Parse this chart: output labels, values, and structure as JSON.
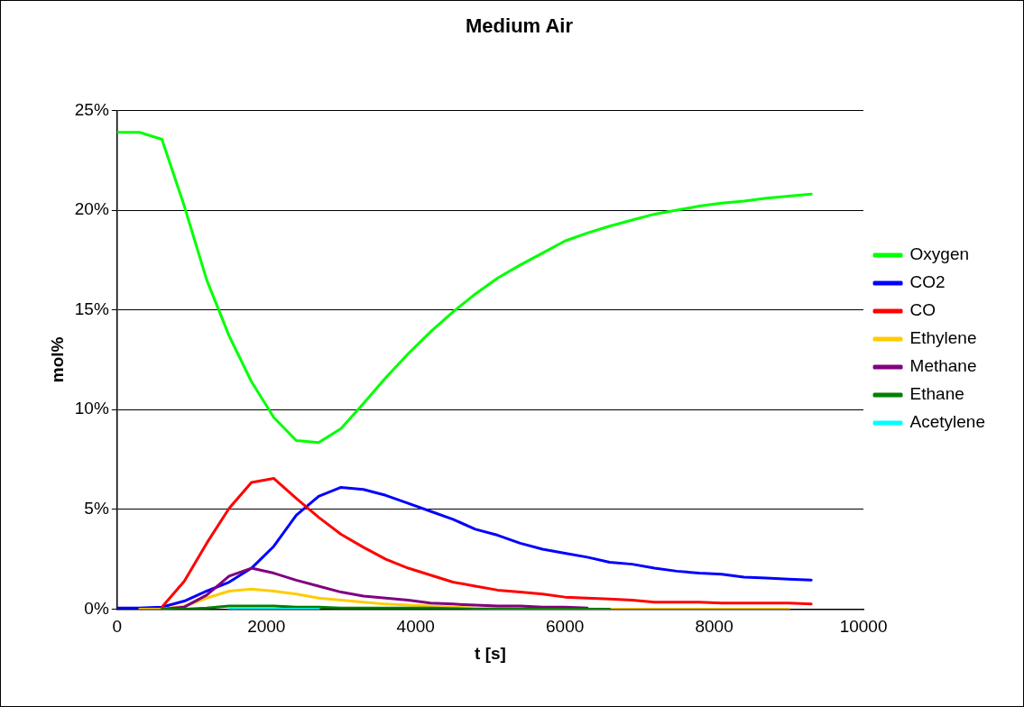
{
  "chart_data": {
    "type": "line",
    "title": "Medium Air",
    "xlabel": "t [s]",
    "ylabel": "mol%",
    "xlim": [
      0,
      10000
    ],
    "xticks": [
      0,
      2000,
      4000,
      6000,
      8000,
      10000
    ],
    "ylim": [
      0,
      25
    ],
    "yticks": [
      {
        "value": 0,
        "label": "0%"
      },
      {
        "value": 5,
        "label": "5%"
      },
      {
        "value": 10,
        "label": "10%"
      },
      {
        "value": 15,
        "label": "15%"
      },
      {
        "value": 20,
        "label": "20%"
      },
      {
        "value": 25,
        "label": "25%"
      }
    ],
    "grid": "y",
    "legend": "right",
    "marker": "none",
    "line_style": "solid",
    "series": [
      {
        "name": "Oxygen",
        "color": "#00ff00",
        "x": [
          0,
          300,
          600,
          900,
          1200,
          1500,
          1800,
          2100,
          2400,
          2700,
          3000,
          3300,
          3600,
          3900,
          4200,
          4500,
          4800,
          5100,
          5400,
          5700,
          6000,
          6300,
          6600,
          6900,
          7200,
          7500,
          7800,
          8100,
          8400,
          8700,
          9000,
          9300
        ],
        "values": [
          23.9,
          23.9,
          23.55,
          20.2,
          16.5,
          13.7,
          11.4,
          9.6,
          8.45,
          8.35,
          9.05,
          10.3,
          11.6,
          12.8,
          13.9,
          14.9,
          15.8,
          16.6,
          17.25,
          17.85,
          18.45,
          18.85,
          19.2,
          19.5,
          19.8,
          20.0,
          20.2,
          20.35,
          20.45,
          20.6,
          20.7,
          20.8
        ]
      },
      {
        "name": "CO2",
        "color": "#0000ff",
        "x": [
          0,
          300,
          600,
          900,
          1200,
          1500,
          1800,
          2100,
          2400,
          2700,
          3000,
          3300,
          3600,
          3900,
          4200,
          4500,
          4800,
          5100,
          5400,
          5700,
          6000,
          6300,
          6600,
          6900,
          7200,
          7500,
          7800,
          8100,
          8400,
          8700,
          9000,
          9300
        ],
        "values": [
          0.05,
          0.05,
          0.1,
          0.4,
          0.9,
          1.35,
          2.05,
          3.15,
          4.7,
          5.65,
          6.1,
          6.0,
          5.7,
          5.3,
          4.9,
          4.5,
          4.0,
          3.7,
          3.3,
          3.0,
          2.8,
          2.6,
          2.35,
          2.25,
          2.05,
          1.9,
          1.8,
          1.75,
          1.6,
          1.55,
          1.5,
          1.45
        ]
      },
      {
        "name": "CO",
        "color": "#ff0000",
        "x": [
          600,
          900,
          1200,
          1500,
          1800,
          2100,
          2400,
          2700,
          3000,
          3300,
          3600,
          3900,
          4200,
          4500,
          4800,
          5100,
          5400,
          5700,
          6000,
          6300,
          6600,
          6900,
          7200,
          7500,
          7800,
          8100,
          8400,
          8700,
          9000,
          9300
        ],
        "values": [
          0.1,
          1.4,
          3.3,
          5.05,
          6.35,
          6.55,
          5.55,
          4.6,
          3.75,
          3.1,
          2.5,
          2.05,
          1.7,
          1.35,
          1.15,
          0.95,
          0.85,
          0.75,
          0.6,
          0.55,
          0.5,
          0.45,
          0.35,
          0.35,
          0.35,
          0.3,
          0.3,
          0.3,
          0.3,
          0.25
        ]
      },
      {
        "name": "Ethylene",
        "color": "#ffcc00",
        "x": [
          300,
          600,
          900,
          1200,
          1500,
          1800,
          2100,
          2400,
          2700,
          3000,
          3300,
          3600,
          3900,
          4200,
          4500,
          4800,
          6600,
          7800,
          9000
        ],
        "values": [
          0,
          0,
          0.15,
          0.55,
          0.9,
          1.0,
          0.9,
          0.75,
          0.55,
          0.45,
          0.35,
          0.25,
          0.2,
          0.15,
          0.1,
          0.05,
          0,
          0,
          0
        ]
      },
      {
        "name": "Methane",
        "color": "#800080",
        "x": [
          600,
          900,
          1200,
          1500,
          1800,
          2100,
          2400,
          2700,
          3000,
          3300,
          3600,
          3900,
          4200,
          4500,
          4800,
          5100,
          5400,
          5700,
          6000,
          6300
        ],
        "values": [
          0,
          0.1,
          0.7,
          1.65,
          2.05,
          1.8,
          1.45,
          1.15,
          0.85,
          0.65,
          0.55,
          0.45,
          0.3,
          0.25,
          0.2,
          0.15,
          0.15,
          0.1,
          0.1,
          0.05
        ]
      },
      {
        "name": "Ethane",
        "color": "#008000",
        "x": [
          600,
          900,
          1200,
          1500,
          1800,
          2100,
          2400,
          2700,
          3000,
          3600,
          4200,
          4800,
          5400,
          6000,
          6600
        ],
        "values": [
          0,
          0,
          0.05,
          0.15,
          0.15,
          0.15,
          0.1,
          0.1,
          0.05,
          0.05,
          0.05,
          0,
          0,
          0,
          0
        ]
      },
      {
        "name": "Acetylene",
        "color": "#00ffff",
        "x": [
          1500,
          1800,
          2100,
          2400,
          2700
        ],
        "values": [
          0,
          0,
          0,
          0,
          0
        ]
      }
    ]
  }
}
